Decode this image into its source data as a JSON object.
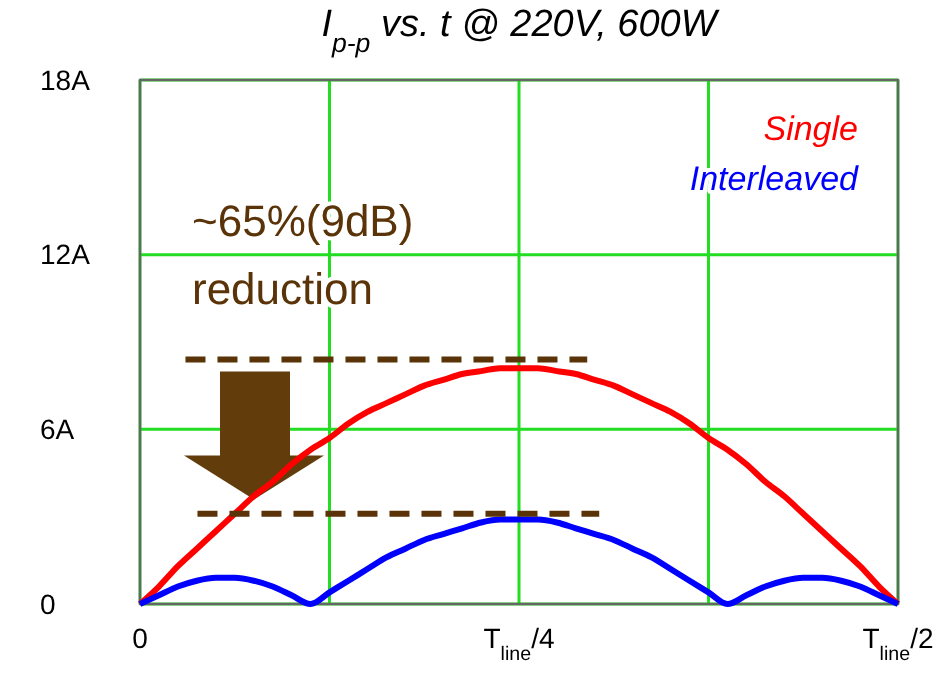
{
  "chart_data": {
    "type": "line",
    "title": "I$_{p-p}$ vs. t @ 220V, 600W",
    "categories": [
      "0",
      null,
      null,
      null,
      null,
      null,
      null,
      null,
      null,
      null,
      null,
      null,
      null,
      null,
      null,
      null,
      null,
      null,
      null,
      null,
      "T$_{line}$/4",
      null,
      null,
      null,
      null,
      null,
      null,
      null,
      null,
      null,
      null,
      null,
      null,
      null,
      null,
      null,
      null,
      null,
      null,
      null,
      "T$_{line}$/2"
    ],
    "ylim": [
      0,
      18
    ],
    "yticks": [
      0,
      {
        "value": 6,
        "label": "6A"
      },
      {
        "value": 12,
        "label": "12A"
      },
      {
        "value": 18,
        "label": "18A"
      }
    ],
    "grid": true,
    "legend": "top right",
    "line_style": "solid",
    "marker": "none",
    "series": [
      {
        "name": "Single",
        "color": "#ff0000",
        "values": [
          0,
          0.6,
          1.3,
          1.9,
          2.5,
          3.1,
          3.7,
          4.2,
          4.8,
          5.3,
          5.7,
          6.2,
          6.6,
          6.9,
          7.2,
          7.5,
          7.7,
          7.9,
          8.0,
          8.1,
          8.1,
          8.1,
          8.0,
          7.9,
          7.7,
          7.5,
          7.2,
          6.9,
          6.6,
          6.2,
          5.7,
          5.3,
          4.8,
          4.2,
          3.7,
          3.1,
          2.5,
          1.9,
          1.3,
          0.6,
          0
        ]
      },
      {
        "name": "Interleaved",
        "color": "#0000ff",
        "values": [
          0,
          0.3,
          0.6,
          0.8,
          0.9,
          0.9,
          0.8,
          0.6,
          0.3,
          0,
          0.4,
          0.8,
          1.2,
          1.6,
          1.9,
          2.2,
          2.4,
          2.6,
          2.8,
          2.9,
          2.9,
          2.9,
          2.8,
          2.6,
          2.4,
          2.2,
          1.9,
          1.6,
          1.2,
          0.8,
          0.4,
          0,
          0.3,
          0.6,
          0.8,
          0.9,
          0.9,
          0.8,
          0.6,
          0.3,
          0
        ]
      }
    ],
    "ref_lines": [
      {
        "axis": "y",
        "value": 8.4,
        "label": null,
        "color": "#5a3408",
        "line_style": "dashed"
      },
      {
        "axis": "y",
        "value": 3.1,
        "label": null,
        "color": "#5a3408",
        "line_style": "dashed"
      }
    ],
    "annotations": [
      "~65%(9dB)",
      "reduction"
    ]
  }
}
